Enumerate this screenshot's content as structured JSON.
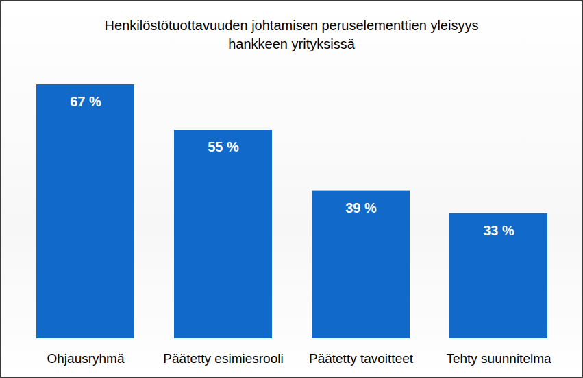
{
  "chart_data": {
    "type": "bar",
    "title": "Henkilöstötuottavuuden johtamisen peruselementtien yleisyys hankkeen yrityksissä",
    "categories": [
      "Ohjausryhmä",
      "Päätetty esimiesrooli",
      "Päätetty tavoitteet",
      "Tehty suunnitelma"
    ],
    "values": [
      67,
      55,
      39,
      33
    ],
    "value_labels": [
      "67 %",
      "55 %",
      "39 %",
      "33 %"
    ],
    "color": "#1169c9",
    "ylim": [
      0,
      67
    ],
    "data_labels": true,
    "tick_labels": "x",
    "grid": false
  }
}
